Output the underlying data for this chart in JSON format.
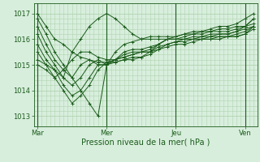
{
  "bg_color": "#d8eedd",
  "line_color": "#1a5c1a",
  "grid_color": "#b0d4b0",
  "xlabel": "Pression niveau de la mer( hPa )",
  "xtick_labels": [
    "Mar",
    "Mer",
    "Jeu",
    "Ven"
  ],
  "xtick_positions": [
    0,
    96,
    192,
    288
  ],
  "ytick_labels": [
    "1013",
    "1014",
    "1015",
    "1016",
    "1017"
  ],
  "ytick_values": [
    1013,
    1014,
    1015,
    1016,
    1017
  ],
  "ylim": [
    1012.6,
    1017.4
  ],
  "xlim": [
    -5,
    305
  ],
  "series": [
    [
      0,
      1017.0,
      12,
      1016.5,
      24,
      1016.0,
      36,
      1015.8,
      48,
      1015.5,
      60,
      1015.3,
      72,
      1015.2,
      84,
      1015.1,
      96,
      1015.1,
      108,
      1015.2,
      120,
      1015.3,
      132,
      1015.4,
      144,
      1015.5,
      156,
      1015.6,
      168,
      1015.8,
      180,
      1016.0,
      192,
      1016.1,
      204,
      1016.2,
      216,
      1016.3,
      228,
      1016.3,
      240,
      1016.4,
      252,
      1016.5,
      264,
      1016.5,
      276,
      1016.6,
      288,
      1016.8,
      300,
      1017.0
    ],
    [
      0,
      1016.8,
      12,
      1016.2,
      24,
      1015.5,
      36,
      1015.0,
      48,
      1014.5,
      60,
      1014.0,
      72,
      1013.5,
      84,
      1013.0,
      96,
      1015.0,
      108,
      1015.5,
      120,
      1015.8,
      132,
      1015.9,
      144,
      1016.0,
      156,
      1016.1,
      168,
      1016.1,
      180,
      1016.1,
      192,
      1016.1,
      204,
      1016.2,
      216,
      1016.2,
      228,
      1016.3,
      240,
      1016.3,
      252,
      1016.4,
      264,
      1016.4,
      276,
      1016.5,
      288,
      1016.5,
      300,
      1016.8
    ],
    [
      0,
      1016.5,
      12,
      1015.8,
      24,
      1015.2,
      36,
      1014.8,
      48,
      1014.5,
      60,
      1015.0,
      72,
      1015.2,
      84,
      1015.0,
      96,
      1015.0,
      108,
      1015.2,
      120,
      1015.5,
      132,
      1015.6,
      144,
      1015.6,
      156,
      1015.7,
      168,
      1015.8,
      180,
      1016.0,
      192,
      1016.0,
      204,
      1016.1,
      216,
      1016.2,
      228,
      1016.2,
      240,
      1016.3,
      252,
      1016.3,
      264,
      1016.3,
      276,
      1016.4,
      288,
      1016.5,
      300,
      1016.6
    ],
    [
      0,
      1016.2,
      12,
      1015.5,
      24,
      1015.0,
      36,
      1014.5,
      48,
      1014.2,
      60,
      1014.5,
      72,
      1015.0,
      84,
      1015.2,
      96,
      1015.0,
      108,
      1015.2,
      120,
      1015.4,
      132,
      1015.5,
      144,
      1015.5,
      156,
      1015.5,
      168,
      1015.8,
      180,
      1016.0,
      192,
      1016.0,
      204,
      1016.0,
      216,
      1016.1,
      228,
      1016.1,
      240,
      1016.2,
      252,
      1016.2,
      264,
      1016.2,
      276,
      1016.3,
      288,
      1016.4,
      300,
      1016.5
    ],
    [
      0,
      1015.8,
      12,
      1015.2,
      24,
      1014.8,
      36,
      1014.2,
      48,
      1013.8,
      60,
      1014.0,
      72,
      1014.5,
      84,
      1015.0,
      96,
      1015.0,
      108,
      1015.1,
      120,
      1015.2,
      132,
      1015.3,
      144,
      1015.3,
      156,
      1015.5,
      168,
      1015.7,
      180,
      1015.8,
      192,
      1015.9,
      204,
      1016.0,
      216,
      1016.0,
      228,
      1016.0,
      240,
      1016.1,
      252,
      1016.1,
      264,
      1016.1,
      276,
      1016.2,
      288,
      1016.3,
      300,
      1016.5
    ],
    [
      0,
      1015.5,
      12,
      1015.0,
      24,
      1014.5,
      36,
      1014.0,
      48,
      1013.5,
      60,
      1013.8,
      72,
      1014.2,
      84,
      1014.8,
      96,
      1015.1,
      108,
      1015.1,
      120,
      1015.2,
      132,
      1015.2,
      144,
      1015.3,
      156,
      1015.4,
      168,
      1015.6,
      180,
      1015.8,
      192,
      1015.9,
      204,
      1015.9,
      216,
      1016.0,
      228,
      1016.0,
      240,
      1016.0,
      252,
      1016.1,
      264,
      1016.1,
      276,
      1016.1,
      288,
      1016.2,
      300,
      1016.4
    ],
    [
      0,
      1015.2,
      12,
      1015.0,
      24,
      1014.8,
      36,
      1014.5,
      48,
      1015.5,
      60,
      1016.0,
      72,
      1016.5,
      84,
      1016.8,
      96,
      1017.0,
      108,
      1016.8,
      120,
      1016.5,
      132,
      1016.2,
      144,
      1016.0,
      156,
      1016.0,
      168,
      1016.0,
      180,
      1016.0,
      192,
      1016.0,
      204,
      1016.0,
      216,
      1016.0,
      228,
      1016.1,
      240,
      1016.1,
      252,
      1016.2,
      264,
      1016.2,
      276,
      1016.3,
      288,
      1016.5,
      300,
      1016.8
    ],
    [
      0,
      1015.0,
      12,
      1014.8,
      24,
      1014.5,
      36,
      1014.8,
      48,
      1015.2,
      60,
      1015.5,
      72,
      1015.5,
      84,
      1015.3,
      96,
      1015.2,
      108,
      1015.2,
      120,
      1015.3,
      132,
      1015.4,
      144,
      1015.5,
      156,
      1015.5,
      168,
      1015.6,
      180,
      1015.7,
      192,
      1015.8,
      204,
      1015.8,
      216,
      1015.9,
      228,
      1016.0,
      240,
      1016.0,
      252,
      1016.0,
      264,
      1016.1,
      276,
      1016.1,
      288,
      1016.2,
      300,
      1016.5
    ]
  ]
}
